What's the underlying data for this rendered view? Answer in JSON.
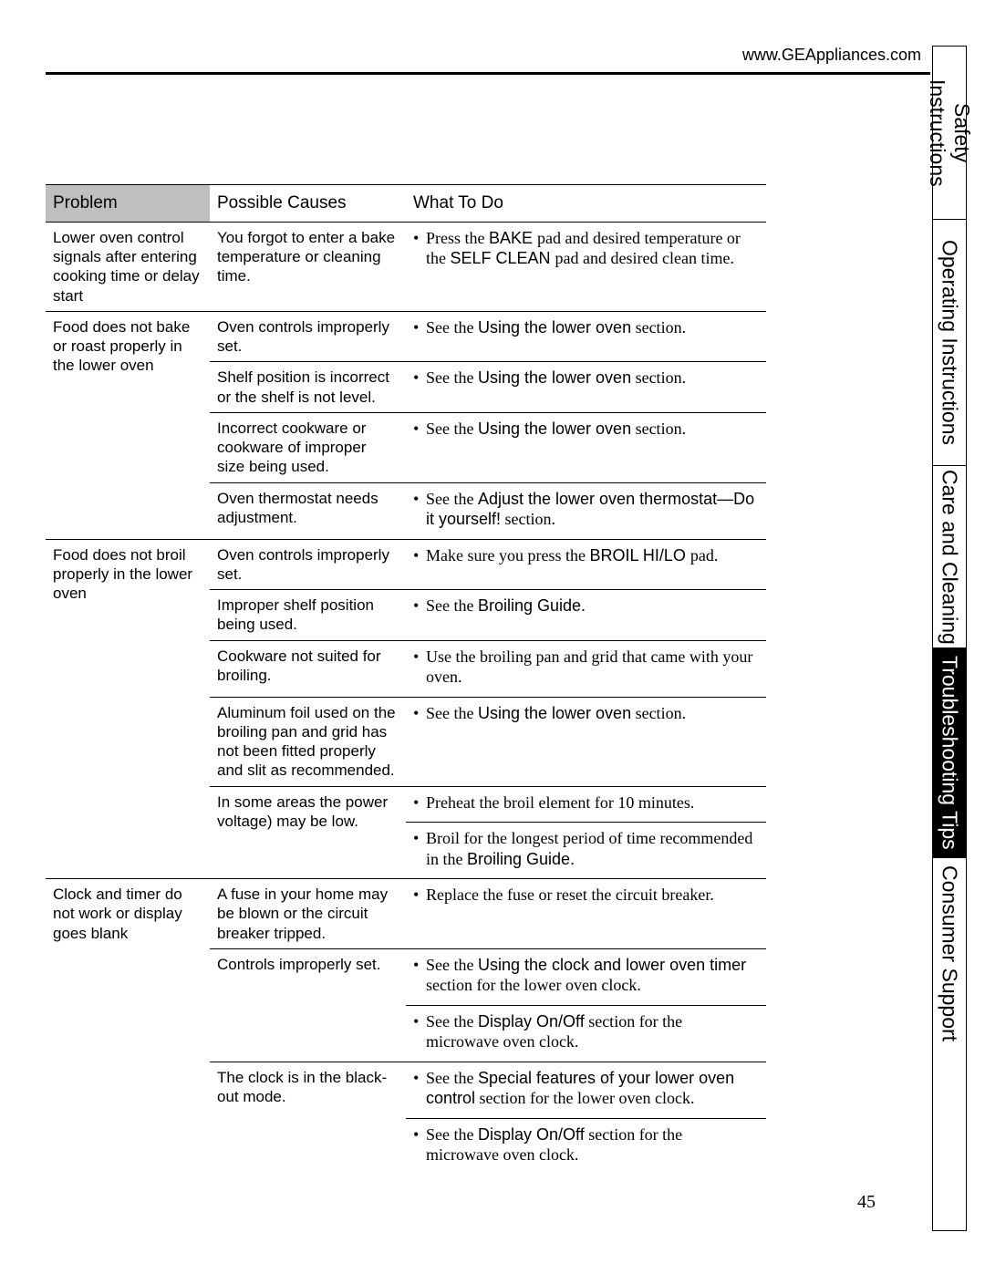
{
  "header": {
    "url": "www.GEAppliances.com"
  },
  "tabs": [
    {
      "label": "Safety Instructions",
      "active": false,
      "flex": 190
    },
    {
      "label": "Operating Instructions",
      "active": false,
      "flex": 270
    },
    {
      "label": "Care and Cleaning",
      "active": false,
      "flex": 200
    },
    {
      "label": "Troubleshooting Tips",
      "active": true,
      "flex": 230
    },
    {
      "label": "Consumer Support",
      "active": false,
      "flex": 210
    }
  ],
  "columns": {
    "problem": "Problem",
    "cause": "Possible Causes",
    "what": "What To Do"
  },
  "rows": [
    {
      "sep": "major",
      "problem": "Lower oven control signals after entering cooking time or delay start",
      "cause": "You forgot to enter a bake temperature or cleaning time.",
      "what": [
        {
          "segments": [
            {
              "t": "Press the ",
              "cls": "serif"
            },
            {
              "t": "BAKE ",
              "cls": "sans-b"
            },
            {
              "t": "pad and desired temperature or the ",
              "cls": "serif"
            },
            {
              "t": "SELF CLEAN ",
              "cls": "sans-b"
            },
            {
              "t": "pad and desired clean time.",
              "cls": "serif"
            }
          ]
        }
      ]
    },
    {
      "sep": "major",
      "problem": "Food does not bake or roast properly in the lower oven",
      "problem_rowspan": 4,
      "cause": "Oven controls improperly set.",
      "what": [
        {
          "segments": [
            {
              "t": "See the ",
              "cls": "serif"
            },
            {
              "t": "Using the lower oven",
              "cls": "it sans-b"
            },
            {
              "t": " section.",
              "cls": "serif"
            }
          ]
        }
      ]
    },
    {
      "sep": "minor",
      "cause": "Shelf position is incorrect or the shelf is not level.",
      "what": [
        {
          "segments": [
            {
              "t": "See the ",
              "cls": "serif"
            },
            {
              "t": "Using the lower oven",
              "cls": "it sans-b"
            },
            {
              "t": " section.",
              "cls": "serif"
            }
          ]
        }
      ]
    },
    {
      "sep": "minor",
      "cause": "Incorrect cookware or cookware of improper size being used.",
      "what": [
        {
          "segments": [
            {
              "t": "See the ",
              "cls": "serif"
            },
            {
              "t": "Using the lower oven",
              "cls": "it sans-b"
            },
            {
              "t": " section.",
              "cls": "serif"
            }
          ]
        }
      ]
    },
    {
      "sep": "minor",
      "cause": "Oven thermostat needs adjustment.",
      "what": [
        {
          "segments": [
            {
              "t": "See the ",
              "cls": "serif"
            },
            {
              "t": "Adjust the lower oven thermostat—Do it yourself!",
              "cls": "it sans-b"
            },
            {
              "t": " section.",
              "cls": "serif"
            }
          ]
        }
      ]
    },
    {
      "sep": "major",
      "problem": "Food does not broil properly in the lower oven",
      "problem_rowspan": 6,
      "cause": "Oven controls improperly set.",
      "what": [
        {
          "segments": [
            {
              "t": "Make sure you press the ",
              "cls": "serif"
            },
            {
              "t": "BROIL HI/LO ",
              "cls": "sans-b"
            },
            {
              "t": "pad.",
              "cls": "serif"
            }
          ]
        }
      ]
    },
    {
      "sep": "minor",
      "cause": "Improper shelf position being used.",
      "what": [
        {
          "segments": [
            {
              "t": "See the ",
              "cls": "serif"
            },
            {
              "t": "Broiling Guide.",
              "cls": "it sans-b"
            }
          ]
        }
      ]
    },
    {
      "sep": "minor",
      "cause": "Cookware not suited for broiling.",
      "what": [
        {
          "segments": [
            {
              "t": "Use the broiling pan and grid that came with your oven.",
              "cls": "serif"
            }
          ]
        }
      ]
    },
    {
      "sep": "minor",
      "cause": "Aluminum foil used on the broiling pan and grid has not been fitted properly and slit as recommended.",
      "what": [
        {
          "segments": [
            {
              "t": "See the ",
              "cls": "serif"
            },
            {
              "t": "Using the lower oven",
              "cls": "it sans-b"
            },
            {
              "t": " section.",
              "cls": "serif"
            }
          ]
        }
      ]
    },
    {
      "sep": "minor",
      "cause": "In some areas the power voltage) may be low.",
      "cause_rowspan": 2,
      "what": [
        {
          "segments": [
            {
              "t": "Preheat the broil element for 10 minutes.",
              "cls": "serif"
            }
          ]
        }
      ]
    },
    {
      "sep": "what",
      "what": [
        {
          "segments": [
            {
              "t": "Broil for the longest period of time recommended in the ",
              "cls": "serif"
            },
            {
              "t": "Broiling Guide.",
              "cls": "it sans-b"
            }
          ]
        }
      ]
    },
    {
      "sep": "major",
      "problem": "Clock and timer do not work or display goes blank",
      "problem_rowspan": 5,
      "cause": "A fuse in your home may be blown or the circuit breaker tripped.",
      "what": [
        {
          "segments": [
            {
              "t": "Replace the fuse or reset the circuit breaker.",
              "cls": "serif"
            }
          ]
        }
      ]
    },
    {
      "sep": "minor",
      "cause": "Controls improperly set.",
      "cause_rowspan": 2,
      "what": [
        {
          "segments": [
            {
              "t": "See the ",
              "cls": "serif"
            },
            {
              "t": "Using the clock and lower oven timer",
              "cls": "it sans-b"
            },
            {
              "t": " section for the lower oven clock.",
              "cls": "serif"
            }
          ]
        }
      ]
    },
    {
      "sep": "what",
      "what": [
        {
          "segments": [
            {
              "t": "See the ",
              "cls": "serif"
            },
            {
              "t": "Display On/Off",
              "cls": "it sans-b"
            },
            {
              "t": " section for the microwave oven clock.",
              "cls": "serif"
            }
          ]
        }
      ]
    },
    {
      "sep": "minor",
      "cause": "The clock is in the black-out mode.",
      "cause_rowspan": 2,
      "what": [
        {
          "segments": [
            {
              "t": "See the ",
              "cls": "serif"
            },
            {
              "t": "Special features of your lower oven control",
              "cls": "it sans-b"
            },
            {
              "t": " section for the lower oven clock.",
              "cls": "serif"
            }
          ]
        }
      ]
    },
    {
      "sep": "what",
      "what": [
        {
          "segments": [
            {
              "t": "See the ",
              "cls": "serif"
            },
            {
              "t": "Display On/Off",
              "cls": "it sans-b"
            },
            {
              "t": " section for the microwave oven clock.",
              "cls": "serif"
            }
          ]
        }
      ]
    }
  ],
  "page_number": "45"
}
